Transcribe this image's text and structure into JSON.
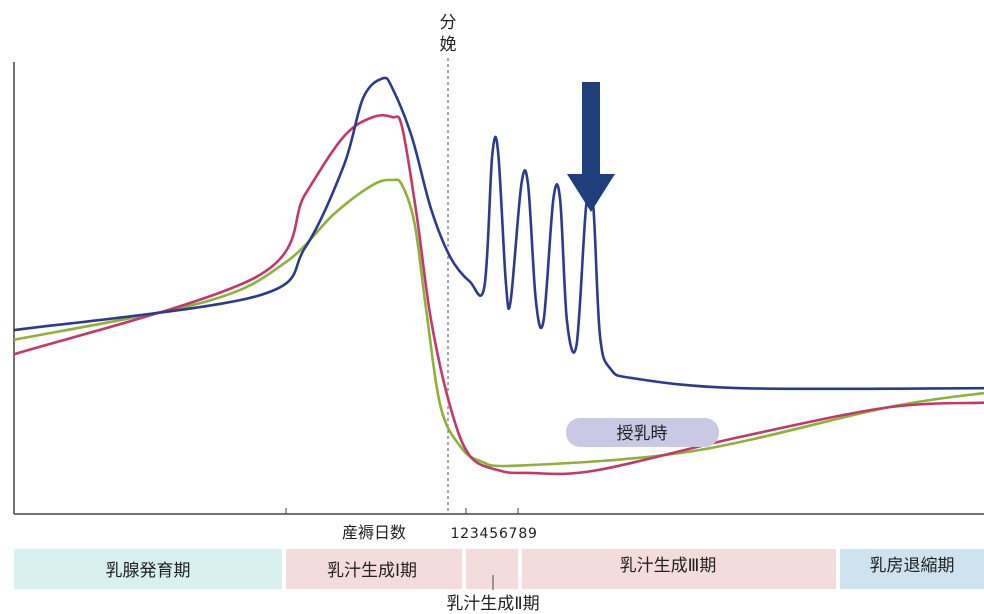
{
  "chart_data": {
    "type": "line",
    "title": "",
    "xlabel": "産褥日数",
    "ylabel": "",
    "grid": false,
    "x_tick_labels": [
      "1",
      "2",
      "3",
      "4",
      "5",
      "6",
      "7",
      "8",
      "9"
    ],
    "birth_marker_label": [
      "分",
      "娩"
    ],
    "series": [
      {
        "color": "#2e3a8c",
        "values": [
          [
            0,
            0.38
          ],
          [
            25,
            0.45
          ],
          [
            30,
            0.55
          ],
          [
            34,
            0.72
          ],
          [
            36,
            0.86
          ],
          [
            38,
            0.9
          ],
          [
            39,
            0.88
          ],
          [
            41,
            0.78
          ],
          [
            43,
            0.63
          ],
          [
            45,
            0.53
          ],
          [
            47,
            0.48
          ],
          [
            48.5,
            0.47
          ],
          [
            49.3,
            0.74
          ],
          [
            49.9,
            0.75
          ],
          [
            50.7,
            0.48
          ],
          [
            51.2,
            0.44
          ],
          [
            52.3,
            0.68
          ],
          [
            53,
            0.68
          ],
          [
            53.8,
            0.44
          ],
          [
            54.6,
            0.4
          ],
          [
            55.6,
            0.65
          ],
          [
            56.3,
            0.65
          ],
          [
            57,
            0.4
          ],
          [
            58,
            0.35
          ],
          [
            59,
            0.64
          ],
          [
            59.7,
            0.64
          ],
          [
            60.4,
            0.37
          ],
          [
            61.5,
            0.3
          ],
          [
            64,
            0.28
          ],
          [
            75,
            0.26
          ],
          [
            100,
            0.26
          ]
        ]
      },
      {
        "color": "#c0396a",
        "values": [
          [
            0,
            0.33
          ],
          [
            25,
            0.49
          ],
          [
            30,
            0.66
          ],
          [
            34,
            0.78
          ],
          [
            37,
            0.82
          ],
          [
            39,
            0.82
          ],
          [
            40,
            0.8
          ],
          [
            41.5,
            0.62
          ],
          [
            43,
            0.4
          ],
          [
            45,
            0.22
          ],
          [
            47,
            0.12
          ],
          [
            50,
            0.09
          ],
          [
            53,
            0.085
          ],
          [
            60,
            0.09
          ],
          [
            75,
            0.16
          ],
          [
            90,
            0.22
          ],
          [
            100,
            0.23
          ]
        ]
      },
      {
        "color": "#8fb03a",
        "values": [
          [
            0,
            0.36
          ],
          [
            20,
            0.44
          ],
          [
            28,
            0.52
          ],
          [
            33,
            0.62
          ],
          [
            37,
            0.68
          ],
          [
            39,
            0.69
          ],
          [
            40,
            0.68
          ],
          [
            41.3,
            0.6
          ],
          [
            42.5,
            0.42
          ],
          [
            44,
            0.22
          ],
          [
            46,
            0.14
          ],
          [
            48,
            0.11
          ],
          [
            52,
            0.1
          ],
          [
            70,
            0.13
          ],
          [
            90,
            0.22
          ],
          [
            100,
            0.25
          ]
        ]
      }
    ],
    "annotations": {
      "feeding_label": "授乳時"
    }
  },
  "phases": [
    {
      "name": "乳腺発育期",
      "color": "#d9f0f1"
    },
    {
      "name": "乳汁生成Ⅰ期",
      "color": "#f5dcdc"
    },
    {
      "name": "乳汁生成Ⅲ期",
      "color": "#f5dcdc"
    },
    {
      "name": "乳房退縮期",
      "color": "#cfe2f0"
    }
  ],
  "phase2_label": "乳汁生成Ⅱ期",
  "arrow_color": "#1f3f7a"
}
